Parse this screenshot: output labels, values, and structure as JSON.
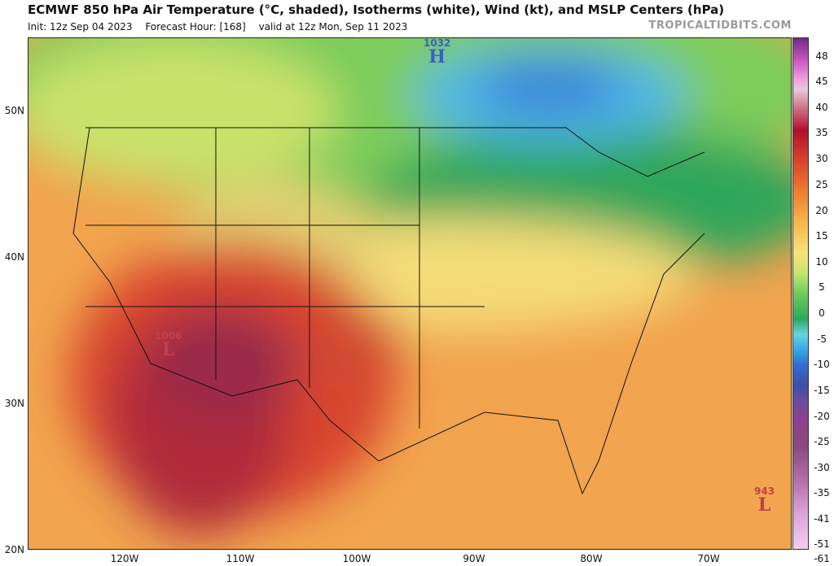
{
  "header": {
    "title": "ECMWF 850 hPa Air Temperature (°C, shaded), Isotherms (white), Wind (kt), and MSLP Centers (hPa)",
    "init": "Init: 12z Sep 04 2023",
    "forecast_hour": "Forecast Hour: [168]",
    "valid": "valid at 12z Mon, Sep 11 2023",
    "brand": "TROPICALTIDBITS.COM"
  },
  "axes": {
    "latitude": [
      "50N",
      "40N",
      "30N",
      "20N"
    ],
    "longitude": [
      "120W",
      "110W",
      "100W",
      "90W",
      "80W",
      "70W"
    ]
  },
  "colorbar": {
    "ticks": [
      "48",
      "45",
      "40",
      "35",
      "30",
      "25",
      "20",
      "15",
      "10",
      "5",
      "0",
      "-5",
      "-10",
      "-15",
      "-20",
      "-25",
      "-30",
      "-35",
      "-41",
      "-51",
      "-61"
    ]
  },
  "pressure_centers": [
    {
      "type": "H",
      "value": "1032",
      "color": "#3b5fc4"
    },
    {
      "type": "L",
      "value": "1006",
      "color": "#c0404a"
    },
    {
      "type": "L",
      "value": "943",
      "color": "#c0404a"
    }
  ],
  "colors": {
    "hot_core": "#8b1f47",
    "warm": "#d9432a",
    "orange": "#ef8a3a",
    "yellow": "#f6d06a",
    "green": "#45b556",
    "cold": "#4aa9e8"
  }
}
